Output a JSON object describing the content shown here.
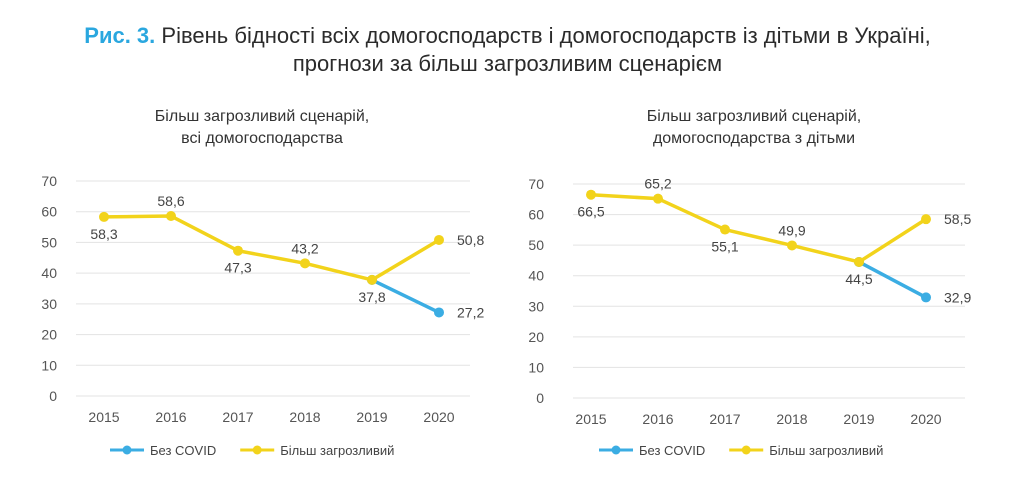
{
  "figure": {
    "label": "Рис. 3.",
    "title_line1": "Рівень бідності всіх домогосподарств і домогосподарств із дітьми в Україні,",
    "title_line2": "прогнози за більш загрозливим сценарієм"
  },
  "colors": {
    "covid": "#3bade3",
    "threat": "#f2d31b",
    "label_accent": "#2aa7df"
  },
  "chart_data": [
    {
      "type": "line",
      "title": [
        "Більш загрозливий сценарій,",
        "всі домогосподарства"
      ],
      "x": [
        "2015",
        "2016",
        "2017",
        "2018",
        "2019",
        "2020"
      ],
      "ylim": [
        0,
        70
      ],
      "yticks": [
        "0",
        "10",
        "20",
        "30",
        "40",
        "50",
        "60",
        "70"
      ],
      "grid": true,
      "legend_placement": "bottom",
      "series": [
        {
          "name": "Без COVID",
          "color": "#3bade3",
          "points": [
            {
              "x": "2019",
              "y": 37.8
            },
            {
              "x": "2020",
              "y": 27.2
            }
          ]
        },
        {
          "name": "Більш загрозливий",
          "color": "#f2d31b",
          "points": [
            {
              "x": "2015",
              "y": 58.3
            },
            {
              "x": "2016",
              "y": 58.6
            },
            {
              "x": "2017",
              "y": 47.3
            },
            {
              "x": "2018",
              "y": 43.2
            },
            {
              "x": "2019",
              "y": 37.8
            },
            {
              "x": "2020",
              "y": 50.8
            }
          ]
        }
      ],
      "data_labels": [
        {
          "x": "2015",
          "y": 58.3,
          "text": "58,3",
          "pos": "below"
        },
        {
          "x": "2016",
          "y": 58.6,
          "text": "58,6",
          "pos": "above"
        },
        {
          "x": "2017",
          "y": 47.3,
          "text": "47,3",
          "pos": "below"
        },
        {
          "x": "2018",
          "y": 43.2,
          "text": "43,2",
          "pos": "above"
        },
        {
          "x": "2019",
          "y": 37.8,
          "text": "37,8",
          "pos": "below"
        },
        {
          "x": "2020",
          "y": 50.8,
          "text": "50,8",
          "pos": "right"
        },
        {
          "x": "2020",
          "y": 27.2,
          "text": "27,2",
          "pos": "right"
        }
      ]
    },
    {
      "type": "line",
      "title": [
        "Більш загрозливий сценарій,",
        "домогосподарства з дітьми"
      ],
      "x": [
        "2015",
        "2016",
        "2017",
        "2018",
        "2019",
        "2020"
      ],
      "ylim": [
        0,
        70
      ],
      "yticks": [
        "0",
        "10",
        "20",
        "30",
        "40",
        "50",
        "60",
        "70"
      ],
      "grid": true,
      "legend_placement": "bottom",
      "series": [
        {
          "name": "Без COVID",
          "color": "#3bade3",
          "points": [
            {
              "x": "2019",
              "y": 44.5
            },
            {
              "x": "2020",
              "y": 32.9
            }
          ]
        },
        {
          "name": "Більш загрозливий",
          "color": "#f2d31b",
          "points": [
            {
              "x": "2015",
              "y": 66.5
            },
            {
              "x": "2016",
              "y": 65.2
            },
            {
              "x": "2017",
              "y": 55.1
            },
            {
              "x": "2018",
              "y": 49.9
            },
            {
              "x": "2019",
              "y": 44.5
            },
            {
              "x": "2020",
              "y": 58.5
            }
          ]
        }
      ],
      "data_labels": [
        {
          "x": "2015",
          "y": 66.5,
          "text": "66,5",
          "pos": "below"
        },
        {
          "x": "2016",
          "y": 65.2,
          "text": "65,2",
          "pos": "above"
        },
        {
          "x": "2017",
          "y": 55.1,
          "text": "55,1",
          "pos": "below"
        },
        {
          "x": "2018",
          "y": 49.9,
          "text": "49,9",
          "pos": "above"
        },
        {
          "x": "2019",
          "y": 44.5,
          "text": "44,5",
          "pos": "below"
        },
        {
          "x": "2020",
          "y": 58.5,
          "text": "58,5",
          "pos": "right"
        },
        {
          "x": "2020",
          "y": 32.9,
          "text": "32,9",
          "pos": "right"
        }
      ]
    }
  ]
}
